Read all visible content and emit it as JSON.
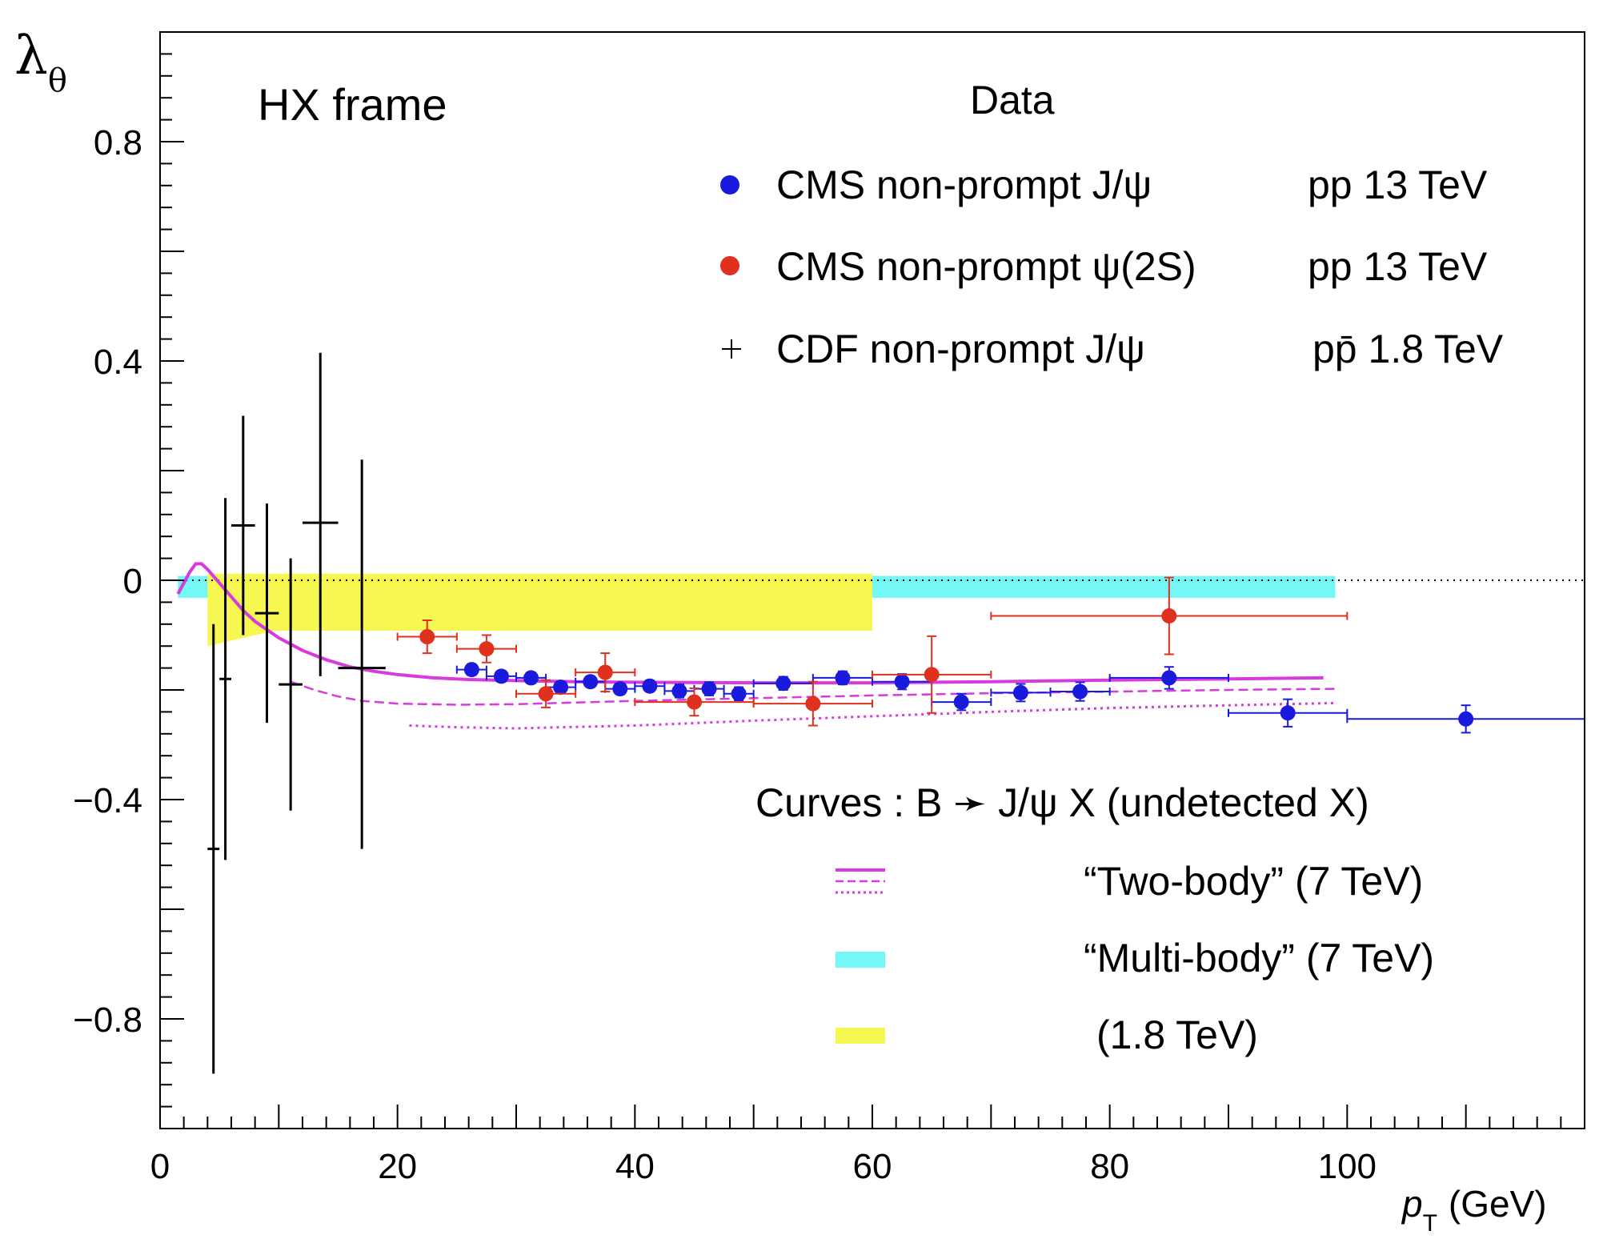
{
  "chart_data": {
    "type": "scatter",
    "frame_label": "HX frame",
    "xlabel_main": "p",
    "xlabel_sub": "T",
    "xlabel_unit": "(GeV)",
    "ylabel_main": "λ",
    "ylabel_sub": "θ",
    "xlim": [
      0,
      120
    ],
    "ylim": [
      -1.0,
      1.0
    ],
    "x_ticks": [
      0,
      20,
      40,
      60,
      80,
      100
    ],
    "x_tick_labels": [
      "0",
      "20",
      "40",
      "60",
      "80",
      "100"
    ],
    "y_ticks": [
      0.8,
      0.4,
      0,
      -0.4,
      -0.8
    ],
    "y_tick_labels": [
      "0.8",
      "0.4",
      "0",
      "−0.4",
      "−0.8"
    ],
    "reference_line_y": 0,
    "data_legend": {
      "title": "Data",
      "entries": [
        {
          "label": "CMS non-prompt J/ψ",
          "energy": "pp 13 TeV"
        },
        {
          "label": "CMS non-prompt ψ(2S)",
          "energy": "pp 13 TeV"
        },
        {
          "label": "CDF non-prompt J/ψ",
          "energy": "pp̄ 1.8 TeV"
        }
      ]
    },
    "curves_legend": {
      "title": "Curves :  B ➛ J/ψ X  (undetected X)",
      "entries": [
        {
          "label": "“Two-body” (7 TeV)"
        },
        {
          "label": "“Multi-body” (7 TeV)"
        },
        {
          "label": "(1.8 TeV)"
        }
      ]
    },
    "series": [
      {
        "name": "CMS non-prompt J/psi (pp 13 TeV)",
        "color": "#1a1adc",
        "marker": "circle",
        "points": [
          {
            "x": 26.25,
            "y": -0.163,
            "xerr": 1.25,
            "yerr": 0.01
          },
          {
            "x": 28.75,
            "y": -0.175,
            "xerr": 1.25,
            "yerr": 0.01
          },
          {
            "x": 31.25,
            "y": -0.178,
            "xerr": 1.25,
            "yerr": 0.01
          },
          {
            "x": 33.75,
            "y": -0.195,
            "xerr": 1.25,
            "yerr": 0.01
          },
          {
            "x": 36.25,
            "y": -0.185,
            "xerr": 1.25,
            "yerr": 0.01
          },
          {
            "x": 38.75,
            "y": -0.198,
            "xerr": 1.25,
            "yerr": 0.01
          },
          {
            "x": 41.25,
            "y": -0.193,
            "xerr": 1.25,
            "yerr": 0.01
          },
          {
            "x": 43.75,
            "y": -0.202,
            "xerr": 1.25,
            "yerr": 0.012
          },
          {
            "x": 46.25,
            "y": -0.198,
            "xerr": 1.25,
            "yerr": 0.012
          },
          {
            "x": 48.75,
            "y": -0.207,
            "xerr": 1.25,
            "yerr": 0.012
          },
          {
            "x": 52.5,
            "y": -0.188,
            "xerr": 2.5,
            "yerr": 0.012
          },
          {
            "x": 57.5,
            "y": -0.178,
            "xerr": 2.5,
            "yerr": 0.012
          },
          {
            "x": 62.5,
            "y": -0.185,
            "xerr": 2.5,
            "yerr": 0.014
          },
          {
            "x": 67.5,
            "y": -0.222,
            "xerr": 2.5,
            "yerr": 0.015
          },
          {
            "x": 72.5,
            "y": -0.205,
            "xerr": 2.5,
            "yerr": 0.016
          },
          {
            "x": 77.5,
            "y": -0.203,
            "xerr": 2.5,
            "yerr": 0.017
          },
          {
            "x": 85.0,
            "y": -0.178,
            "xerr": 5.0,
            "yerr": 0.02
          },
          {
            "x": 95.0,
            "y": -0.242,
            "xerr": 5.0,
            "yerr": 0.025
          },
          {
            "x": 110.0,
            "y": -0.253,
            "xerr": 10.0,
            "yerr": 0.025
          }
        ]
      },
      {
        "name": "CMS non-prompt psi(2S) (pp 13 TeV)",
        "color": "#e0301e",
        "marker": "circle",
        "points": [
          {
            "x": 22.5,
            "y": -0.103,
            "xerr": 2.5,
            "yerr": 0.03
          },
          {
            "x": 27.5,
            "y": -0.125,
            "xerr": 2.5,
            "yerr": 0.025
          },
          {
            "x": 32.5,
            "y": -0.207,
            "xerr": 2.5,
            "yerr": 0.025
          },
          {
            "x": 37.5,
            "y": -0.168,
            "xerr": 2.5,
            "yerr": 0.035
          },
          {
            "x": 45.0,
            "y": -0.222,
            "xerr": 5.0,
            "yerr": 0.025
          },
          {
            "x": 55.0,
            "y": -0.225,
            "xerr": 5.0,
            "yerr": 0.04
          },
          {
            "x": 65.0,
            "y": -0.172,
            "xerr": 5.0,
            "yerr": 0.07
          },
          {
            "x": 85.0,
            "y": -0.065,
            "xerr": 15.0,
            "yerr": 0.07
          }
        ]
      },
      {
        "name": "CDF non-prompt J/psi (ppbar 1.8 TeV)",
        "color": "#000000",
        "marker": "cross",
        "points": [
          {
            "x": 4.5,
            "y": -0.49,
            "xerr": 0.5,
            "yerr_up": 0.41,
            "yerr_down": 0.41
          },
          {
            "x": 5.5,
            "y": -0.18,
            "xerr": 0.5,
            "yerr_up": 0.33,
            "yerr_down": 0.33
          },
          {
            "x": 7.0,
            "y": 0.1,
            "xerr": 1.0,
            "yerr_up": 0.2,
            "yerr_down": 0.2
          },
          {
            "x": 9.0,
            "y": -0.06,
            "xerr": 1.0,
            "yerr_up": 0.2,
            "yerr_down": 0.2
          },
          {
            "x": 11.0,
            "y": -0.19,
            "xerr": 1.0,
            "yerr_up": 0.23,
            "yerr_down": 0.23
          },
          {
            "x": 13.5,
            "y": 0.105,
            "xerr": 1.5,
            "yerr_up": 0.31,
            "yerr_down": 0.28
          },
          {
            "x": 17.0,
            "y": -0.16,
            "xerr": 2.0,
            "yerr_up": 0.38,
            "yerr_down": 0.33
          }
        ]
      }
    ],
    "curves": [
      {
        "name": "Two-body (7 TeV) solid",
        "color": "#d83ae0",
        "style": "solid",
        "x": [
          1.5,
          2.5,
          3.0,
          3.5,
          4.0,
          5.0,
          6.0,
          7.0,
          8.0,
          9.0,
          10.0,
          12.0,
          14.0,
          16.0,
          18.0,
          20.0,
          23.0,
          26.0,
          30.0,
          35.0,
          40.0,
          50.0,
          60.0,
          70.0,
          80.0,
          90.0,
          98.0
        ],
        "y": [
          -0.025,
          0.015,
          0.03,
          0.03,
          0.02,
          -0.005,
          -0.03,
          -0.055,
          -0.075,
          -0.09,
          -0.105,
          -0.128,
          -0.145,
          -0.158,
          -0.166,
          -0.172,
          -0.178,
          -0.181,
          -0.183,
          -0.185,
          -0.186,
          -0.187,
          -0.187,
          -0.185,
          -0.182,
          -0.18,
          -0.178
        ]
      },
      {
        "name": "Two-body (7 TeV) dashed",
        "color": "#d83ae0",
        "style": "dashed",
        "x": [
          11.0,
          13.0,
          15.0,
          17.0,
          20.0,
          25.0,
          30.0,
          40.0,
          50.0,
          60.0,
          70.0,
          80.0,
          90.0,
          99.0
        ],
        "y": [
          -0.185,
          -0.2,
          -0.212,
          -0.22,
          -0.225,
          -0.227,
          -0.226,
          -0.22,
          -0.215,
          -0.21,
          -0.206,
          -0.203,
          -0.2,
          -0.198
        ]
      },
      {
        "name": "Two-body (7 TeV) dotted",
        "color": "#d83ae0",
        "style": "dotted",
        "x": [
          21.0,
          25.0,
          30.0,
          40.0,
          50.0,
          60.0,
          70.0,
          80.0,
          90.0,
          99.0
        ],
        "y": [
          -0.265,
          -0.268,
          -0.27,
          -0.265,
          -0.256,
          -0.248,
          -0.24,
          -0.233,
          -0.228,
          -0.224
        ]
      }
    ],
    "bands": [
      {
        "name": "Multi-body (7 TeV)",
        "color": "#74f7f7",
        "x": [
          1.5,
          99.0
        ],
        "y_top": 0.008,
        "y_bottom": -0.032
      },
      {
        "name": "(1.8 TeV)",
        "color": "#f7f752",
        "x": [
          4.0,
          60.0
        ],
        "y_top": 0.012,
        "y_bottom": -0.092,
        "left_edge_bottom": -0.12
      }
    ]
  }
}
